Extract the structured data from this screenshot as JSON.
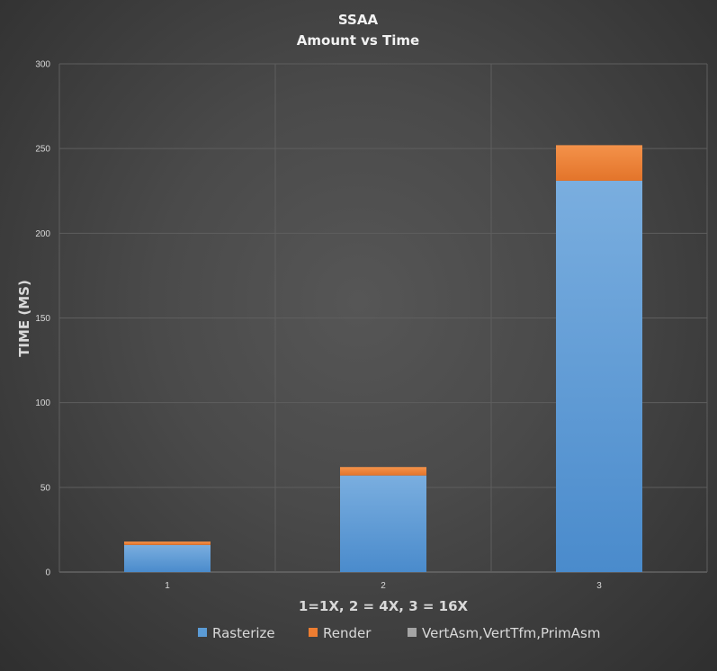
{
  "chart_data": {
    "type": "bar",
    "stacked": true,
    "title": "SSAA",
    "subtitle": "Amount vs Time",
    "xlabel": "1=1X, 2 = 4X, 3 = 16X",
    "ylabel": "TIME (MS)",
    "categories": [
      "1",
      "2",
      "3"
    ],
    "ylim": [
      0,
      300
    ],
    "yticks": [
      "0",
      "50",
      "100",
      "150",
      "200",
      "250",
      "300"
    ],
    "grid": true,
    "legend_position": "bottom",
    "series": [
      {
        "name": "Rasterize",
        "values": [
          16,
          57,
          231
        ],
        "color": "#5b9bd5"
      },
      {
        "name": "Render",
        "values": [
          2,
          5,
          21
        ],
        "color": "#ed7d31"
      },
      {
        "name": "VertAsm,VertTfm,PrimAsm",
        "values": [
          0,
          0,
          0
        ],
        "color": "#a5a5a5"
      }
    ]
  }
}
